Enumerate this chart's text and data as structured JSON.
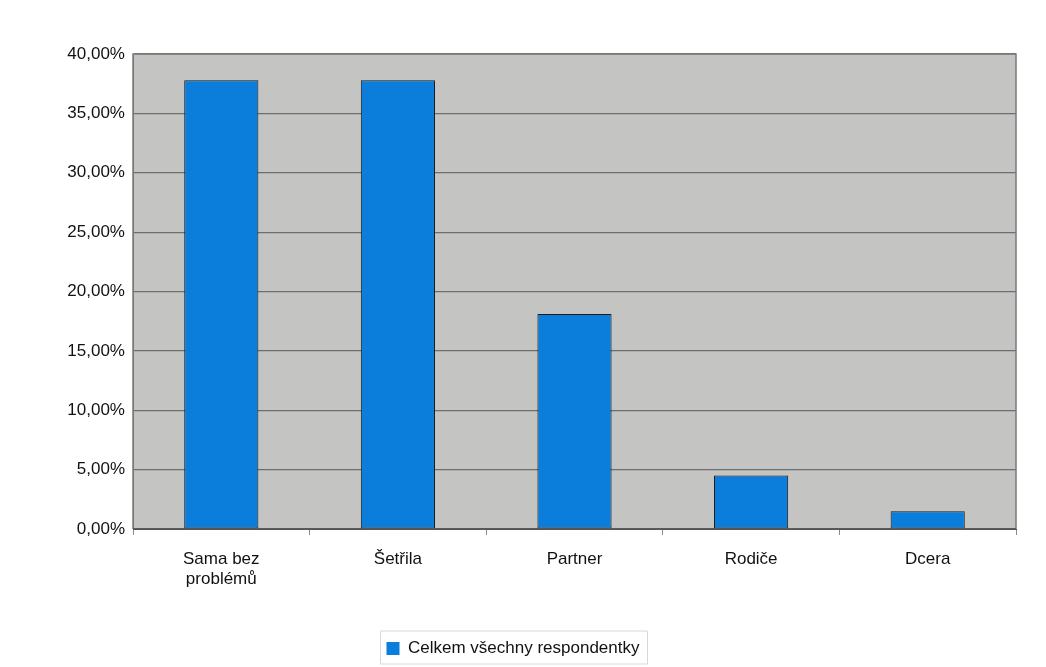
{
  "chart_data": {
    "type": "bar",
    "categories": [
      "Sama bez problémů",
      "Šetřila",
      "Partner",
      "Rodiče",
      "Dcera"
    ],
    "series": [
      {
        "name": "Celkem všechny respondentky",
        "color": "#0b7dda",
        "values": [
          37.8,
          37.8,
          18.1,
          4.5,
          1.5
        ]
      }
    ],
    "ylim": [
      0,
      40
    ],
    "yticks": [
      {
        "value": 0,
        "label": "0,00%"
      },
      {
        "value": 5,
        "label": "5,00%"
      },
      {
        "value": 10,
        "label": "10,00%"
      },
      {
        "value": 15,
        "label": "15,00%"
      },
      {
        "value": 20,
        "label": "20,00%"
      },
      {
        "value": 25,
        "label": "25,00%"
      },
      {
        "value": 30,
        "label": "30,00%"
      },
      {
        "value": 35,
        "label": "35,00%"
      },
      {
        "value": 40,
        "label": "40,00%"
      }
    ],
    "grid": "y",
    "legend": "bottom"
  }
}
